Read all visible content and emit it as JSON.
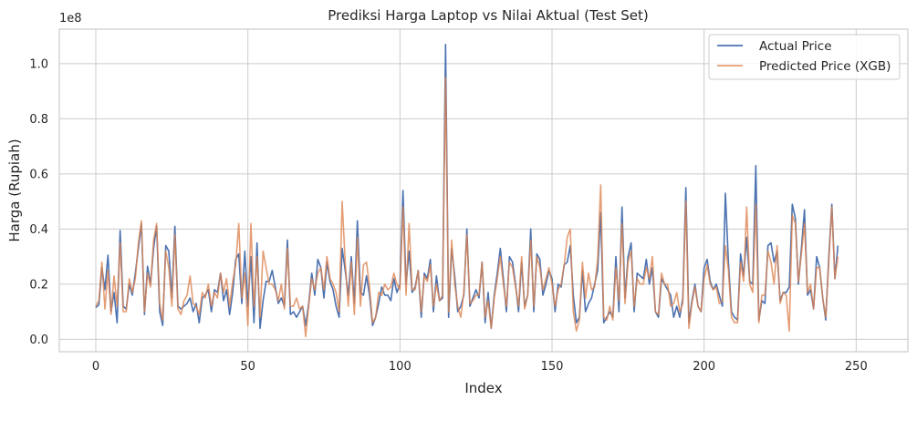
{
  "chart_data": {
    "type": "line",
    "title": "Prediksi Harga Laptop vs Nilai Aktual (Test Set)",
    "xlabel": "Index",
    "ylabel": "Harga (Rupiah)",
    "y_scale_label": "1e8",
    "y_multiplier": 100000000,
    "xlim": [
      -12,
      267
    ],
    "ylim": [
      -0.045,
      1.125
    ],
    "x_ticks": [
      0,
      50,
      100,
      150,
      200,
      250
    ],
    "x_tick_labels": [
      "0",
      "50",
      "100",
      "150",
      "200",
      "250"
    ],
    "y_ticks": [
      0.0,
      0.2,
      0.4,
      0.6,
      0.8,
      1.0
    ],
    "y_tick_labels": [
      "0.0",
      "0.2",
      "0.4",
      "0.6",
      "0.8",
      "1.0"
    ],
    "grid": true,
    "legend_position": "top-right",
    "series": [
      {
        "name": "Actual Price",
        "color": "#4c72b0",
        "values": [
          0.115,
          0.125,
          0.26,
          0.18,
          0.305,
          0.1,
          0.17,
          0.06,
          0.395,
          0.12,
          0.11,
          0.2,
          0.16,
          0.24,
          0.33,
          0.42,
          0.09,
          0.265,
          0.2,
          0.33,
          0.41,
          0.1,
          0.05,
          0.34,
          0.32,
          0.15,
          0.41,
          0.12,
          0.11,
          0.12,
          0.13,
          0.15,
          0.1,
          0.13,
          0.06,
          0.15,
          0.16,
          0.18,
          0.1,
          0.18,
          0.17,
          0.24,
          0.14,
          0.18,
          0.09,
          0.17,
          0.29,
          0.31,
          0.13,
          0.32,
          0.12,
          0.3,
          0.06,
          0.35,
          0.04,
          0.14,
          0.21,
          0.21,
          0.25,
          0.19,
          0.13,
          0.15,
          0.12,
          0.36,
          0.09,
          0.1,
          0.08,
          0.1,
          0.12,
          0.05,
          0.13,
          0.24,
          0.16,
          0.29,
          0.26,
          0.15,
          0.28,
          0.21,
          0.18,
          0.12,
          0.08,
          0.33,
          0.25,
          0.16,
          0.3,
          0.13,
          0.43,
          0.17,
          0.16,
          0.23,
          0.16,
          0.05,
          0.08,
          0.13,
          0.19,
          0.16,
          0.16,
          0.14,
          0.22,
          0.17,
          0.2,
          0.54,
          0.2,
          0.32,
          0.17,
          0.19,
          0.25,
          0.08,
          0.24,
          0.22,
          0.29,
          0.1,
          0.23,
          0.14,
          0.15,
          1.07,
          0.08,
          0.33,
          0.23,
          0.1,
          0.12,
          0.16,
          0.4,
          0.12,
          0.15,
          0.18,
          0.15,
          0.28,
          0.06,
          0.17,
          0.04,
          0.16,
          0.24,
          0.33,
          0.22,
          0.1,
          0.3,
          0.28,
          0.2,
          0.1,
          0.28,
          0.12,
          0.16,
          0.4,
          0.1,
          0.31,
          0.29,
          0.16,
          0.2,
          0.25,
          0.22,
          0.1,
          0.2,
          0.19,
          0.27,
          0.28,
          0.34,
          0.16,
          0.06,
          0.08,
          0.25,
          0.1,
          0.13,
          0.15,
          0.2,
          0.25,
          0.46,
          0.06,
          0.08,
          0.1,
          0.08,
          0.3,
          0.1,
          0.48,
          0.15,
          0.3,
          0.35,
          0.1,
          0.24,
          0.23,
          0.22,
          0.29,
          0.2,
          0.26,
          0.1,
          0.08,
          0.22,
          0.2,
          0.18,
          0.16,
          0.08,
          0.12,
          0.08,
          0.15,
          0.55,
          0.06,
          0.14,
          0.2,
          0.12,
          0.1,
          0.26,
          0.29,
          0.21,
          0.18,
          0.2,
          0.16,
          0.12,
          0.53,
          0.28,
          0.1,
          0.08,
          0.07,
          0.31,
          0.23,
          0.37,
          0.21,
          0.2,
          0.63,
          0.07,
          0.14,
          0.13,
          0.34,
          0.35,
          0.28,
          0.32,
          0.14,
          0.17,
          0.17,
          0.19,
          0.49,
          0.44,
          0.2,
          0.33,
          0.47,
          0.16,
          0.18,
          0.11,
          0.3,
          0.26,
          0.15,
          0.07,
          0.3,
          0.49,
          0.22,
          0.34
        ]
      },
      {
        "name": "Predicted Price (XGB)",
        "color": "#dd8452",
        "values": [
          0.12,
          0.14,
          0.28,
          0.11,
          0.25,
          0.09,
          0.23,
          0.12,
          0.35,
          0.1,
          0.1,
          0.22,
          0.17,
          0.22,
          0.35,
          0.43,
          0.1,
          0.24,
          0.19,
          0.36,
          0.42,
          0.13,
          0.07,
          0.32,
          0.26,
          0.12,
          0.38,
          0.11,
          0.09,
          0.14,
          0.16,
          0.23,
          0.13,
          0.12,
          0.09,
          0.17,
          0.15,
          0.2,
          0.12,
          0.17,
          0.15,
          0.24,
          0.17,
          0.22,
          0.12,
          0.21,
          0.27,
          0.42,
          0.15,
          0.24,
          0.05,
          0.42,
          0.12,
          0.3,
          0.08,
          0.32,
          0.26,
          0.2,
          0.2,
          0.18,
          0.14,
          0.2,
          0.11,
          0.33,
          0.12,
          0.12,
          0.15,
          0.11,
          0.12,
          0.01,
          0.12,
          0.22,
          0.18,
          0.24,
          0.26,
          0.18,
          0.3,
          0.22,
          0.2,
          0.17,
          0.1,
          0.5,
          0.28,
          0.12,
          0.28,
          0.09,
          0.37,
          0.12,
          0.27,
          0.28,
          0.19,
          0.06,
          0.08,
          0.17,
          0.16,
          0.2,
          0.18,
          0.19,
          0.24,
          0.2,
          0.18,
          0.48,
          0.16,
          0.42,
          0.18,
          0.18,
          0.25,
          0.1,
          0.23,
          0.21,
          0.27,
          0.12,
          0.2,
          0.14,
          0.16,
          0.95,
          0.1,
          0.36,
          0.2,
          0.12,
          0.08,
          0.17,
          0.38,
          0.13,
          0.14,
          0.16,
          0.16,
          0.28,
          0.08,
          0.14,
          0.04,
          0.15,
          0.22,
          0.3,
          0.2,
          0.12,
          0.28,
          0.26,
          0.19,
          0.12,
          0.3,
          0.11,
          0.16,
          0.36,
          0.12,
          0.3,
          0.26,
          0.18,
          0.22,
          0.26,
          0.2,
          0.12,
          0.18,
          0.2,
          0.27,
          0.37,
          0.4,
          0.1,
          0.03,
          0.07,
          0.28,
          0.15,
          0.24,
          0.18,
          0.19,
          0.29,
          0.56,
          0.08,
          0.07,
          0.12,
          0.07,
          0.26,
          0.14,
          0.42,
          0.13,
          0.28,
          0.32,
          0.12,
          0.22,
          0.2,
          0.2,
          0.26,
          0.22,
          0.3,
          0.1,
          0.09,
          0.24,
          0.2,
          0.2,
          0.12,
          0.13,
          0.17,
          0.1,
          0.13,
          0.5,
          0.04,
          0.13,
          0.19,
          0.12,
          0.1,
          0.22,
          0.27,
          0.2,
          0.18,
          0.19,
          0.13,
          0.14,
          0.34,
          0.25,
          0.08,
          0.06,
          0.06,
          0.28,
          0.21,
          0.48,
          0.2,
          0.17,
          0.49,
          0.06,
          0.16,
          0.16,
          0.32,
          0.28,
          0.2,
          0.34,
          0.13,
          0.17,
          0.16,
          0.03,
          0.45,
          0.42,
          0.21,
          0.31,
          0.42,
          0.17,
          0.2,
          0.11,
          0.26,
          0.26,
          0.15,
          0.08,
          0.28,
          0.48,
          0.22,
          0.3
        ]
      }
    ]
  }
}
